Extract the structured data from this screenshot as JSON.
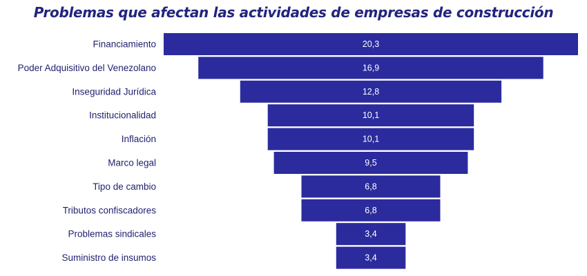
{
  "colors": {
    "bar": "#2b2b9e",
    "title": "#23237f",
    "label": "#1f1f6e"
  },
  "chart_data": {
    "type": "bar",
    "orientation": "horizontal",
    "layout": "funnel",
    "title": "Problemas que afectan las actividades de empresas de construcción",
    "categories": [
      "Financiamiento",
      "Poder Adquisitivo del Venezolano",
      "Inseguridad Jurídica",
      "Institucionalidad",
      "Inflación",
      "Marco legal",
      "Tipo de cambio",
      "Tributos confiscadores",
      "Problemas sindicales",
      "Suministro de insumos"
    ],
    "values": [
      20.3,
      16.9,
      12.8,
      10.1,
      10.1,
      9.5,
      6.8,
      6.8,
      3.4,
      3.4
    ],
    "value_labels": [
      "20,3",
      "16,9",
      "12,8",
      "10,1",
      "10,1",
      "9,5",
      "6,8",
      "6,8",
      "3,4",
      "3,4"
    ],
    "xlabel": "",
    "ylabel": "",
    "grid": false,
    "legend": "none"
  }
}
